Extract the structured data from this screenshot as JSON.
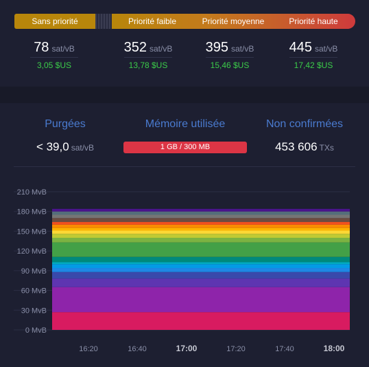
{
  "priority_bar": {
    "none": "Sans priorité",
    "low": "Priorité faible",
    "medium": "Priorité moyenne",
    "high": "Priorité haute"
  },
  "fees": [
    {
      "value": "78",
      "unit": "sat/vB",
      "usd": "3,05 $US"
    },
    {
      "value": "352",
      "unit": "sat/vB",
      "usd": "13,78 $US"
    },
    {
      "value": "395",
      "unit": "sat/vB",
      "usd": "15,46 $US"
    },
    {
      "value": "445",
      "unit": "sat/vB",
      "usd": "17,42 $US"
    }
  ],
  "mempool": {
    "purged_label": "Purgées",
    "purged_value": "< 39,0",
    "purged_unit": "sat/vB",
    "memory_label": "Mémoire utilisée",
    "memory_value": "1 GB / 300 MB",
    "unconfirmed_label": "Non confirmées",
    "unconfirmed_value": "453 606",
    "unconfirmed_unit": "TXs"
  },
  "chart_data": {
    "type": "area",
    "stacked": true,
    "x_tick_labels": [
      "16:20",
      "16:40",
      "17:00",
      "17:20",
      "17:40",
      "18:00"
    ],
    "x_bold": [
      "17:00",
      "18:00"
    ],
    "y_tick_labels": [
      "0 MvB",
      "30 MvB",
      "60 MvB",
      "90 MvB",
      "120 MvB",
      "150 MvB",
      "180 MvB",
      "210 MvB"
    ],
    "ylim": [
      0,
      210
    ],
    "grid": true,
    "layers": [
      {
        "value": 27,
        "color": "#d81b60"
      },
      {
        "value": 38,
        "color": "#8e24aa"
      },
      {
        "value": 13,
        "color": "#5e35b1"
      },
      {
        "value": 10,
        "color": "#3949ab"
      },
      {
        "value": 6,
        "color": "#1e88e5"
      },
      {
        "value": 6,
        "color": "#039be5"
      },
      {
        "value": 3,
        "color": "#00acc1"
      },
      {
        "value": 8,
        "color": "#00897b"
      },
      {
        "value": 22,
        "color": "#43a047"
      },
      {
        "value": 7,
        "color": "#7cb342"
      },
      {
        "value": 6,
        "color": "#c0ca33"
      },
      {
        "value": 5,
        "color": "#fdd835"
      },
      {
        "value": 4,
        "color": "#ffb300"
      },
      {
        "value": 5,
        "color": "#fb8c00"
      },
      {
        "value": 4,
        "color": "#f4511e"
      },
      {
        "value": 6,
        "color": "#6d4c41"
      },
      {
        "value": 5,
        "color": "#757575"
      },
      {
        "value": 5,
        "color": "#546e7a"
      },
      {
        "value": 4,
        "color": "#4a148c"
      }
    ]
  }
}
